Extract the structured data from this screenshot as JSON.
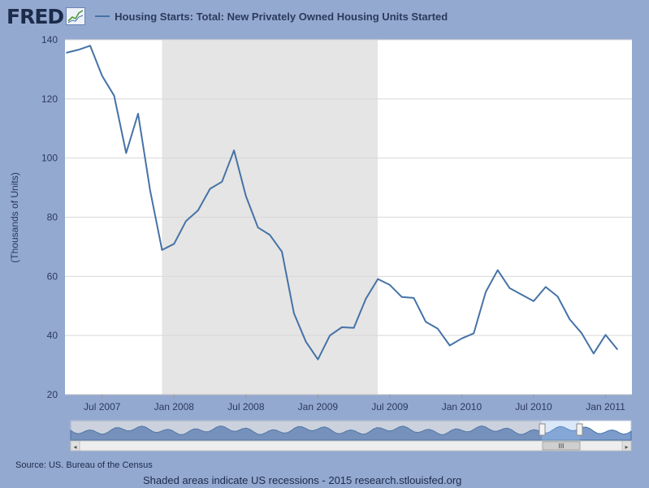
{
  "header": {
    "logo": "FRED",
    "logo_icon": "chart-line-icon",
    "title": "Housing Starts: Total: New Privately Owned Housing Units Started"
  },
  "footer": {
    "source": "Source: US. Bureau of the Census",
    "note": "Shaded areas indicate US recessions - 2015 research.stlouisfed.org"
  },
  "navigator": {
    "scroll_grip": "III"
  },
  "colors": {
    "background": "#94a9d0",
    "plot_background": "#ffffff",
    "recession": "#e5e5e5",
    "series": "#4572a7",
    "grid": "#d8d8d8"
  },
  "chart_data": {
    "type": "line",
    "title": "Housing Starts: Total: New Privately Owned Housing Units Started",
    "xlabel": "",
    "ylabel": "(Thousands of Units)",
    "ylim": [
      20,
      140
    ],
    "yticks": [
      20,
      40,
      60,
      80,
      100,
      120,
      140
    ],
    "xticks": [
      "Jul 2007",
      "Jan 2008",
      "Jul 2008",
      "Jan 2009",
      "Jul 2009",
      "Jan 2010",
      "Jul 2010",
      "Jan 2011"
    ],
    "xlim": [
      "2007-04",
      "2011-03"
    ],
    "grid": true,
    "recession": {
      "start": "2007-12",
      "end": "2009-06"
    },
    "series": [
      {
        "name": "Housing Starts: Total: New Privately Owned Housing Units Started",
        "x": [
          "2007-04",
          "2007-05",
          "2007-06",
          "2007-07",
          "2007-08",
          "2007-09",
          "2007-10",
          "2007-11",
          "2007-12",
          "2008-01",
          "2008-02",
          "2008-03",
          "2008-04",
          "2008-05",
          "2008-06",
          "2008-07",
          "2008-08",
          "2008-09",
          "2008-10",
          "2008-11",
          "2008-12",
          "2009-01",
          "2009-02",
          "2009-03",
          "2009-04",
          "2009-05",
          "2009-06",
          "2009-07",
          "2009-08",
          "2009-09",
          "2009-10",
          "2009-11",
          "2009-12",
          "2010-01",
          "2010-02",
          "2010-03",
          "2010-04",
          "2010-05",
          "2010-06",
          "2010-07",
          "2010-08",
          "2010-09",
          "2010-10",
          "2010-11",
          "2010-12",
          "2011-01",
          "2011-02"
        ],
        "values": [
          135.6,
          136.6,
          138.0,
          127.8,
          121.1,
          101.7,
          115.0,
          89.1,
          68.9,
          71.0,
          78.7,
          82.3,
          89.6,
          92.0,
          102.6,
          87.1,
          76.5,
          74.0,
          68.3,
          47.5,
          37.9,
          31.9,
          40.0,
          42.8,
          42.6,
          52.4,
          59.1,
          57.1,
          53.0,
          52.7,
          44.6,
          42.3,
          36.6,
          39.0,
          40.7,
          54.7,
          62.1,
          56.0,
          53.8,
          51.6,
          56.4,
          53.2,
          45.5,
          40.8,
          33.9,
          40.2,
          35.2
        ]
      }
    ]
  }
}
